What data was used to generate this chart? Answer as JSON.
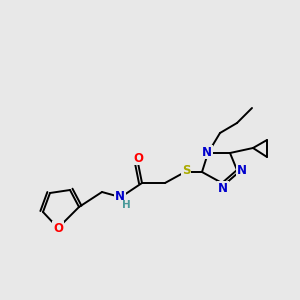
{
  "background_color": "#e8e8e8",
  "bond_color": "#000000",
  "atom_colors": {
    "O_furan": "#ff0000",
    "N": "#0000cc",
    "S": "#aaaa00",
    "O_carbonyl": "#ff0000",
    "H": "#4a9a9a",
    "C": "#000000"
  },
  "figsize": [
    3.0,
    3.0
  ],
  "dpi": 100
}
